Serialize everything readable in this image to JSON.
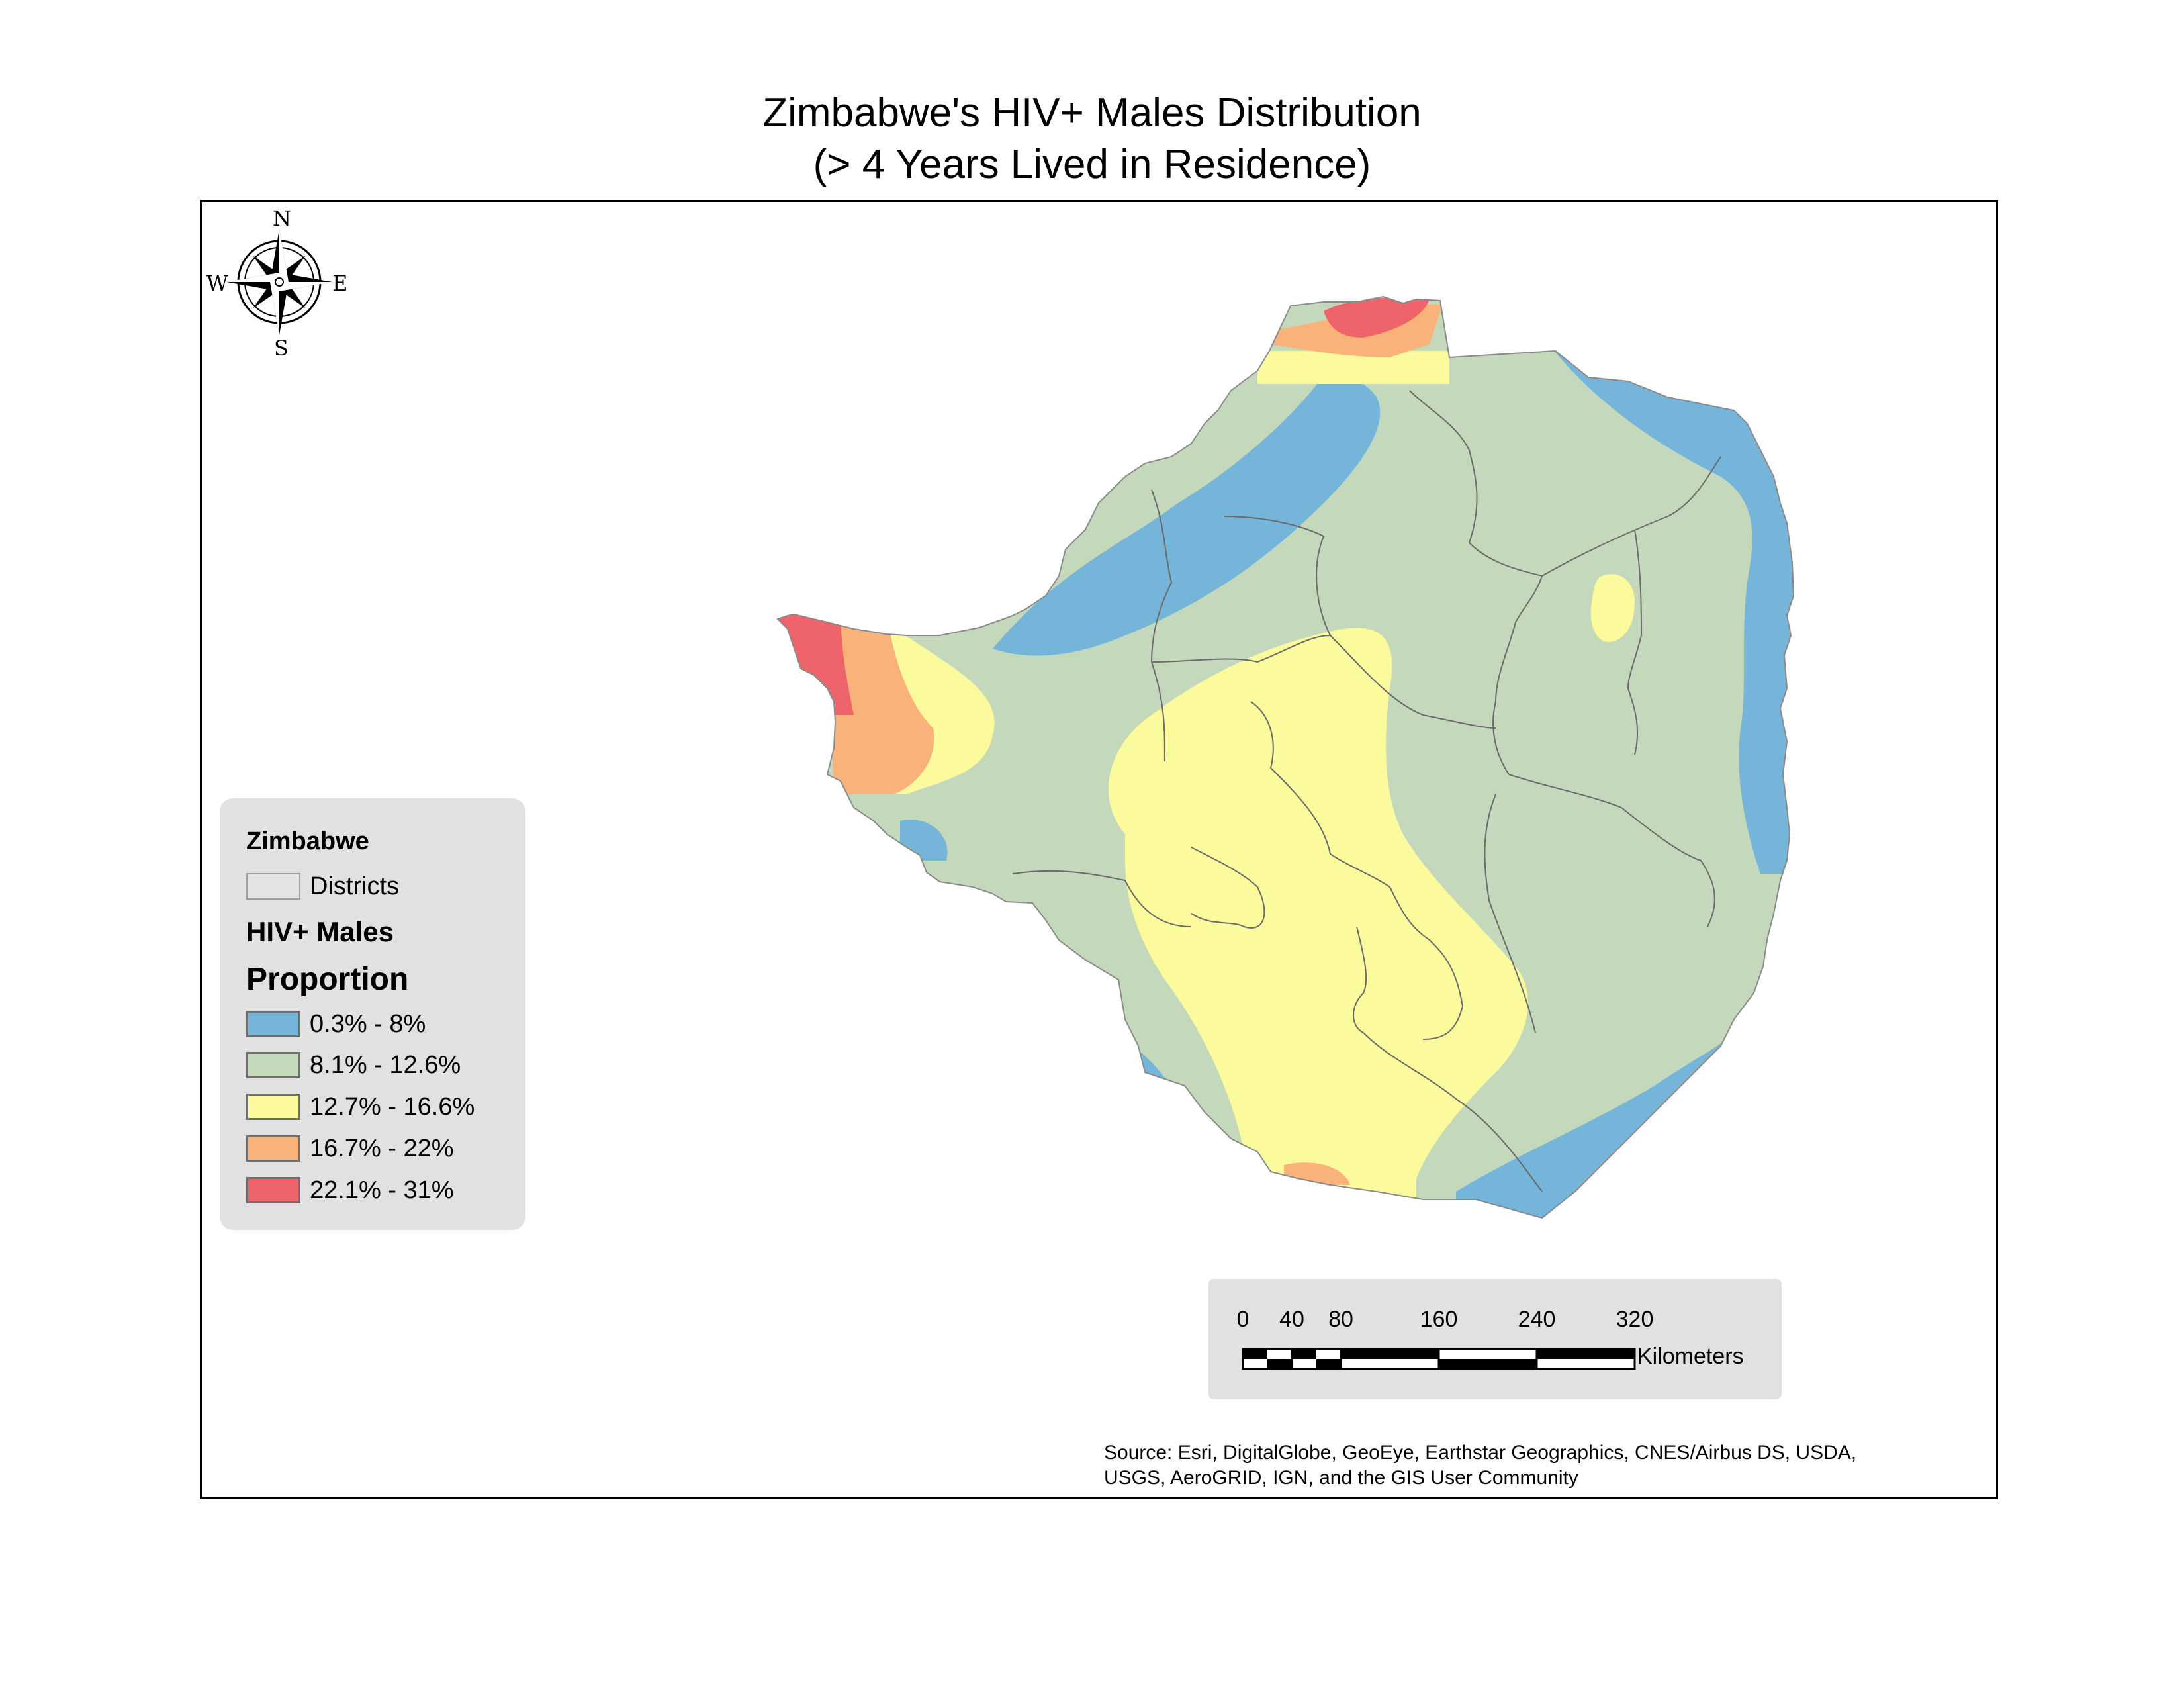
{
  "title": {
    "line1": "Zimbabwe's HIV+ Males Distribution",
    "line2": "(> 4 Years Lived in Residence)"
  },
  "north_arrow": {
    "n": "N",
    "s": "S",
    "e": "E",
    "w": "W",
    "icon": "compass-rose-icon"
  },
  "legend": {
    "group_title": "Zimbabwe",
    "layer_label": "Districts",
    "field_title": "HIV+ Males",
    "field_subtitle": "Proportion",
    "classes": [
      {
        "label": "0.3% - 8%",
        "color": "#74b5d9"
      },
      {
        "label": "8.1% - 12.6%",
        "color": "#c4d8bc"
      },
      {
        "label": "12.7% - 16.6%",
        "color": "#fbfa9c"
      },
      {
        "label": "16.7% - 22%",
        "color": "#f9b27a"
      },
      {
        "label": "22.1% - 31%",
        "color": "#ef636a"
      }
    ],
    "districts_swatch_color": "#e4e4e4"
  },
  "scale_bar": {
    "ticks": [
      "0",
      "40",
      "80",
      "160",
      "240",
      "320"
    ],
    "tick_values": [
      0,
      40,
      80,
      160,
      240,
      320
    ],
    "unit": "Kilometers"
  },
  "source": {
    "line1": "Source: Esri, DigitalGlobe, GeoEye, Earthstar Geographics, CNES/Airbus DS, USDA,",
    "line2": "USGS, AeroGRID, IGN, and the GIS User Community"
  }
}
